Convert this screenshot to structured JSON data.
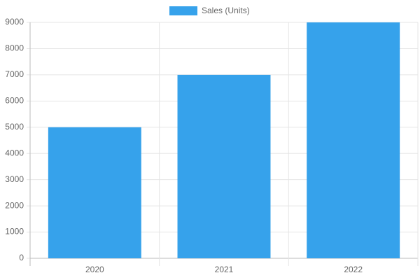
{
  "chart_data": {
    "type": "bar",
    "categories": [
      "2020",
      "2021",
      "2022"
    ],
    "series": [
      {
        "name": "Sales (Units)",
        "color": "#36a2eb",
        "values": [
          5000,
          7000,
          9000
        ]
      }
    ],
    "ylim": [
      0,
      9000
    ],
    "yticks": [
      0,
      1000,
      2000,
      3000,
      4000,
      5000,
      6000,
      7000,
      8000,
      9000
    ],
    "grid": true,
    "legend": "top"
  }
}
